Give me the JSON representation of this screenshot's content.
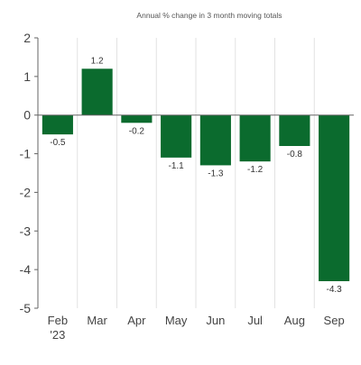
{
  "chart_data": {
    "type": "bar",
    "title": "Annual % change in 3 month moving totals",
    "categories": [
      "Feb '23",
      "Mar",
      "Apr",
      "May",
      "Jun",
      "Jul",
      "Aug",
      "Sep"
    ],
    "category_lines": [
      [
        "Feb",
        "'23"
      ],
      [
        "Mar"
      ],
      [
        "Apr"
      ],
      [
        "May"
      ],
      [
        "Jun"
      ],
      [
        "Jul"
      ],
      [
        "Aug"
      ],
      [
        "Sep"
      ]
    ],
    "values": [
      -0.5,
      1.2,
      -0.2,
      -1.1,
      -1.3,
      -1.2,
      -0.8,
      -4.3
    ],
    "data_labels": [
      "-0.5",
      "1.2",
      "-0.2",
      "-1.1",
      "-1.3",
      "-1.2",
      "-0.8",
      "-4.3"
    ],
    "y_ticks": [
      2,
      1,
      0,
      -1,
      -2,
      -3,
      -4,
      -5
    ],
    "y_tick_labels": [
      "2",
      "1",
      "0",
      "-1",
      "-2",
      "-3",
      "-4",
      "-5"
    ],
    "ylim": [
      -5,
      2
    ],
    "xlabel": "",
    "ylabel": "",
    "grid": "vertical category dividers",
    "legend": "none",
    "colors": {
      "bar": "#0b6b2e",
      "axis": "#666666",
      "divider": "#e2e2e2",
      "text": "#444444",
      "title": "#555555"
    }
  }
}
